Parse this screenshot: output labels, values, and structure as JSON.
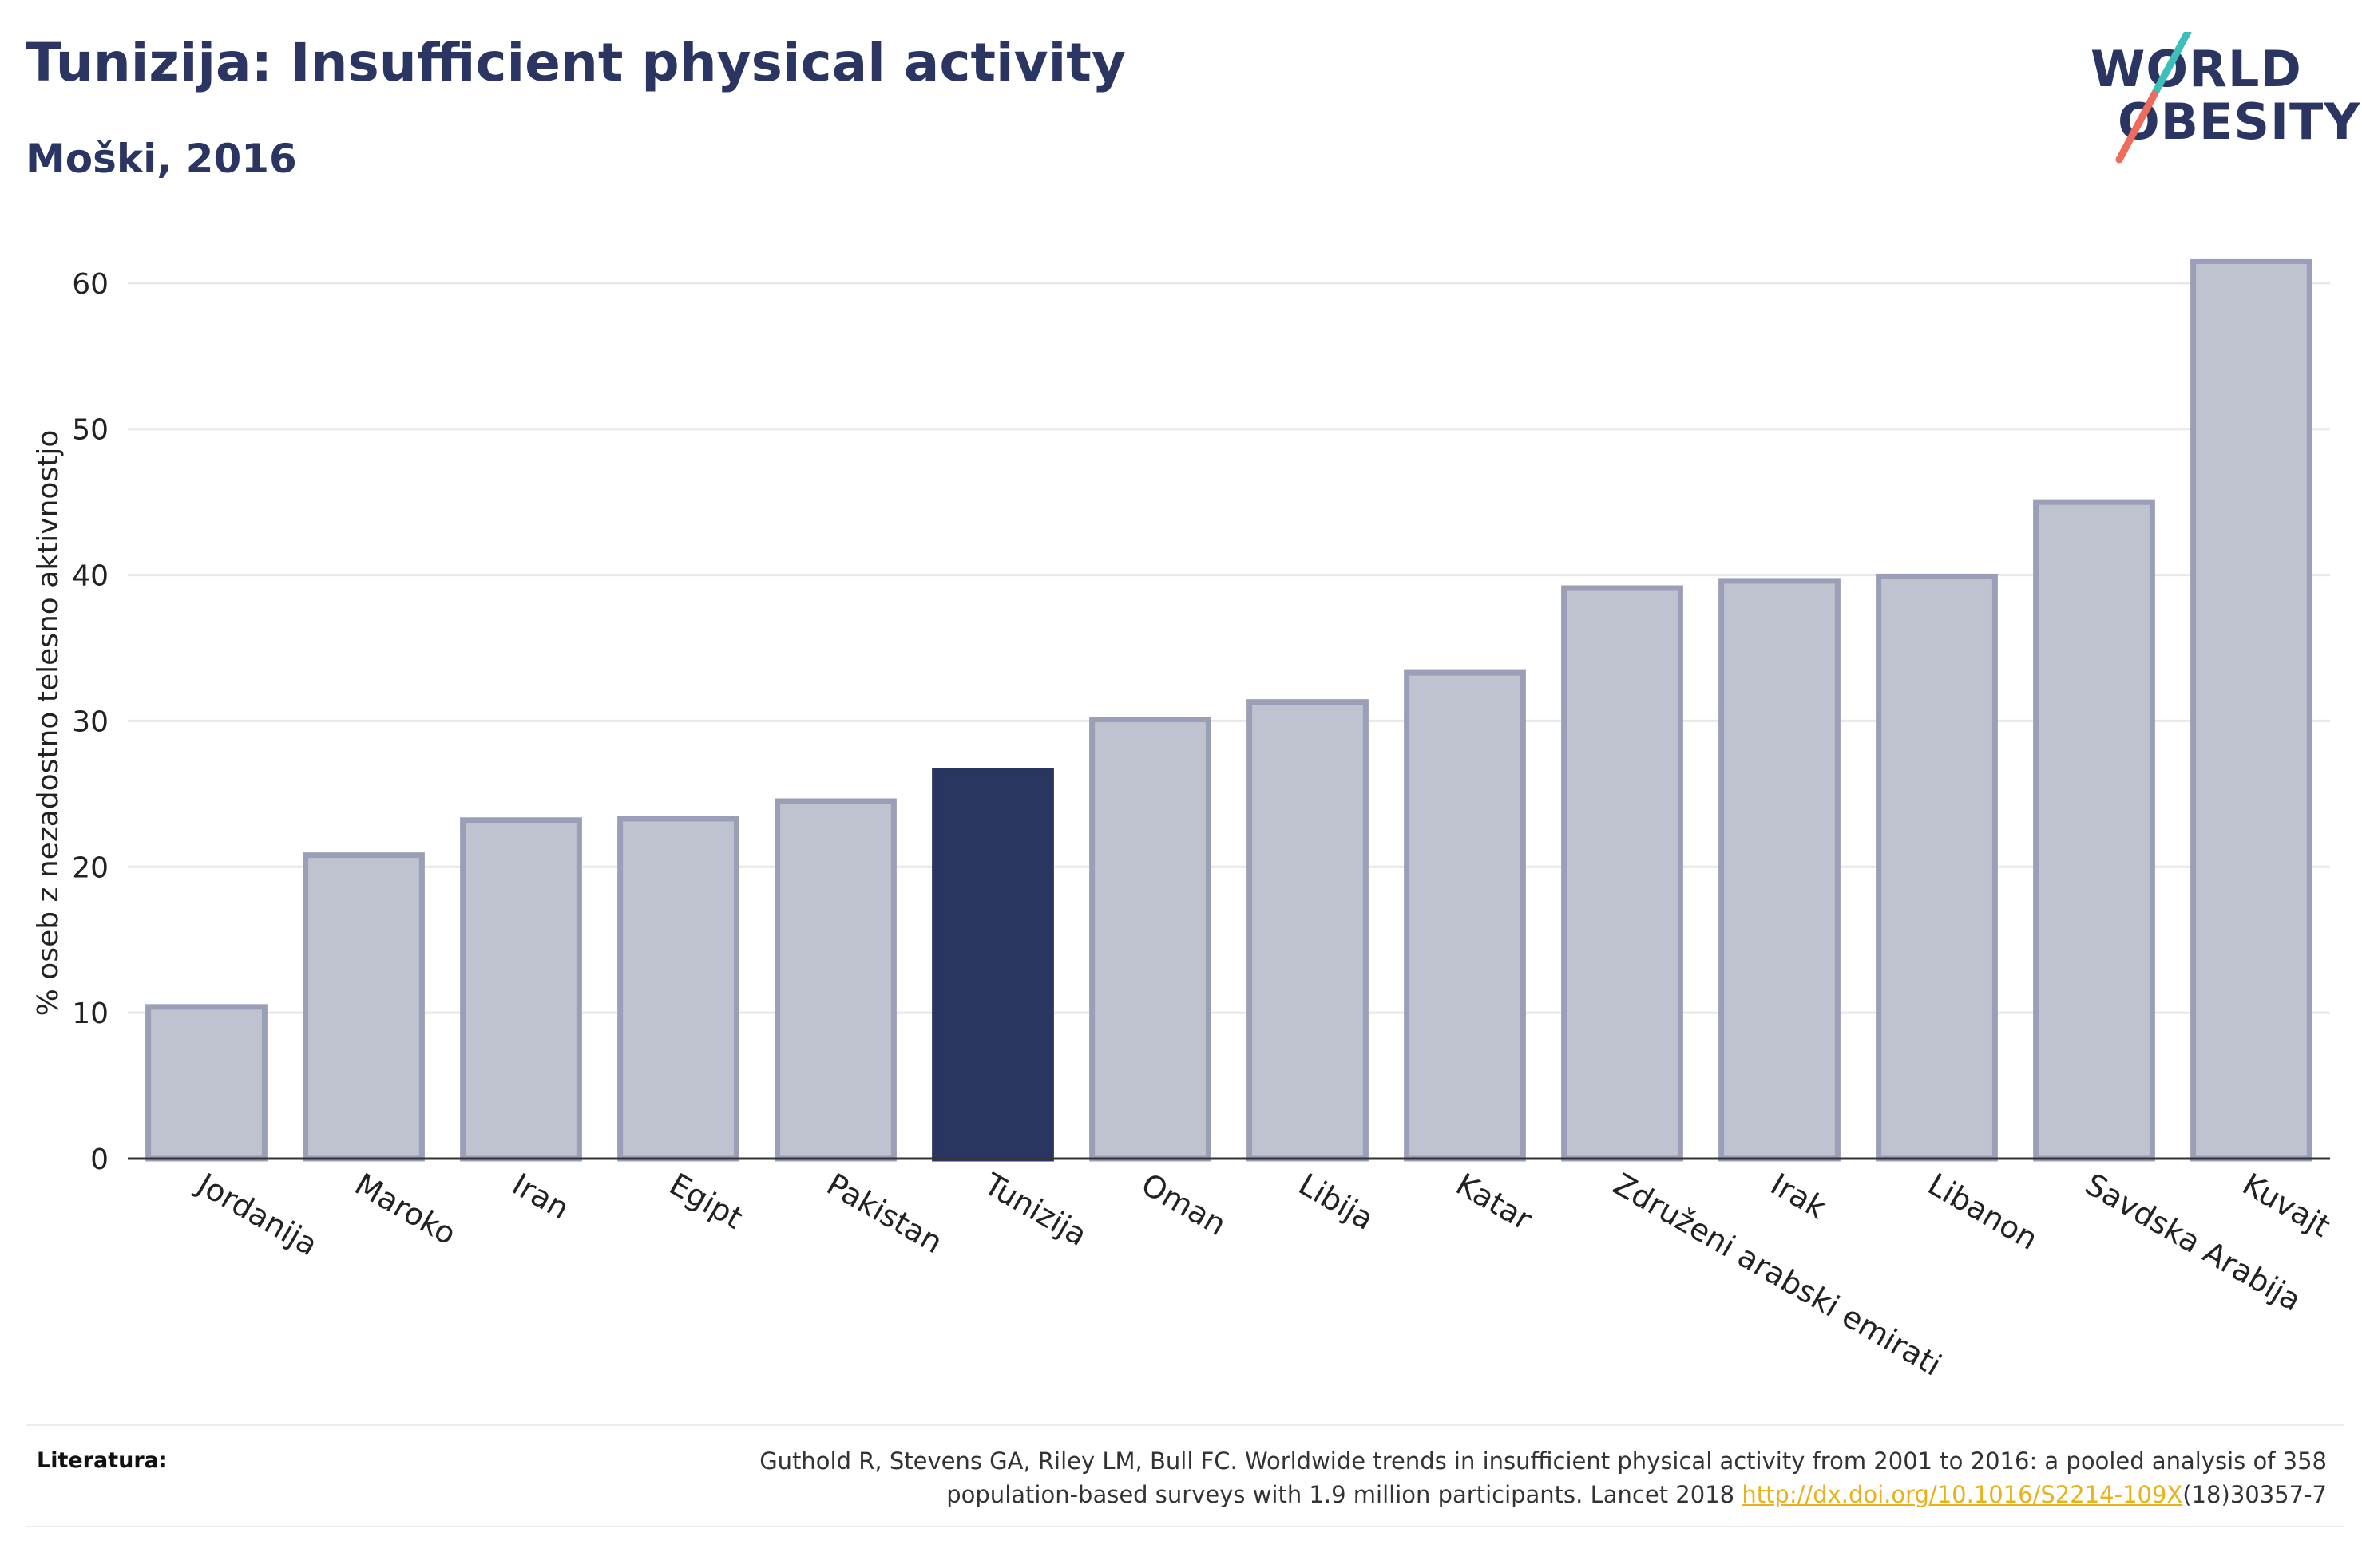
{
  "header": {
    "title": "Tunizija: Insufficient physical activity",
    "subtitle": "Moški, 2016"
  },
  "logo": {
    "line1": "WORLD",
    "line2": "OBESITY",
    "colors": {
      "text": "#2b3562",
      "slash_top": "#3bbfb8",
      "slash_bottom": "#ef6b5b"
    }
  },
  "chart_data": {
    "type": "bar",
    "title": "",
    "xlabel": "",
    "ylabel": "% oseb z nezadostno telesno aktivnostjo",
    "ylim": [
      0,
      63
    ],
    "yticks": [
      0,
      10,
      20,
      30,
      40,
      50,
      60
    ],
    "grid": true,
    "categories": [
      "Jordanija",
      "Maroko",
      "Iran",
      "Egipt",
      "Pakistan",
      "Tunizija",
      "Oman",
      "Libija",
      "Katar",
      "Združeni arabski emirati",
      "Irak",
      "Libanon",
      "Savdska Arabija",
      "Kuvajt"
    ],
    "values": [
      10.4,
      20.8,
      23.2,
      23.3,
      24.5,
      26.6,
      30.1,
      31.3,
      33.3,
      39.1,
      39.6,
      39.9,
      45.0,
      61.5
    ],
    "highlight": "Tunizija",
    "colors": {
      "bar": "#bfc2cf",
      "bar_border": "#9a9eb6",
      "highlight": "#2b3562",
      "grid": "#e8e8e8",
      "axis": "#333333"
    }
  },
  "footer": {
    "ref_label": "Literatura:",
    "ref_text_line1": "Guthold R, Stevens GA, Riley LM, Bull FC. Worldwide trends in insufficient physical activity from 2001 to 2016: a pooled analysis of 358",
    "ref_text_line2_pre": "population-based surveys with 1.9 million participants. Lancet 2018 ",
    "ref_link": "http://dx.doi.org/10.1016/S2214-109X",
    "ref_text_line2_post": "(18)30357-7"
  }
}
